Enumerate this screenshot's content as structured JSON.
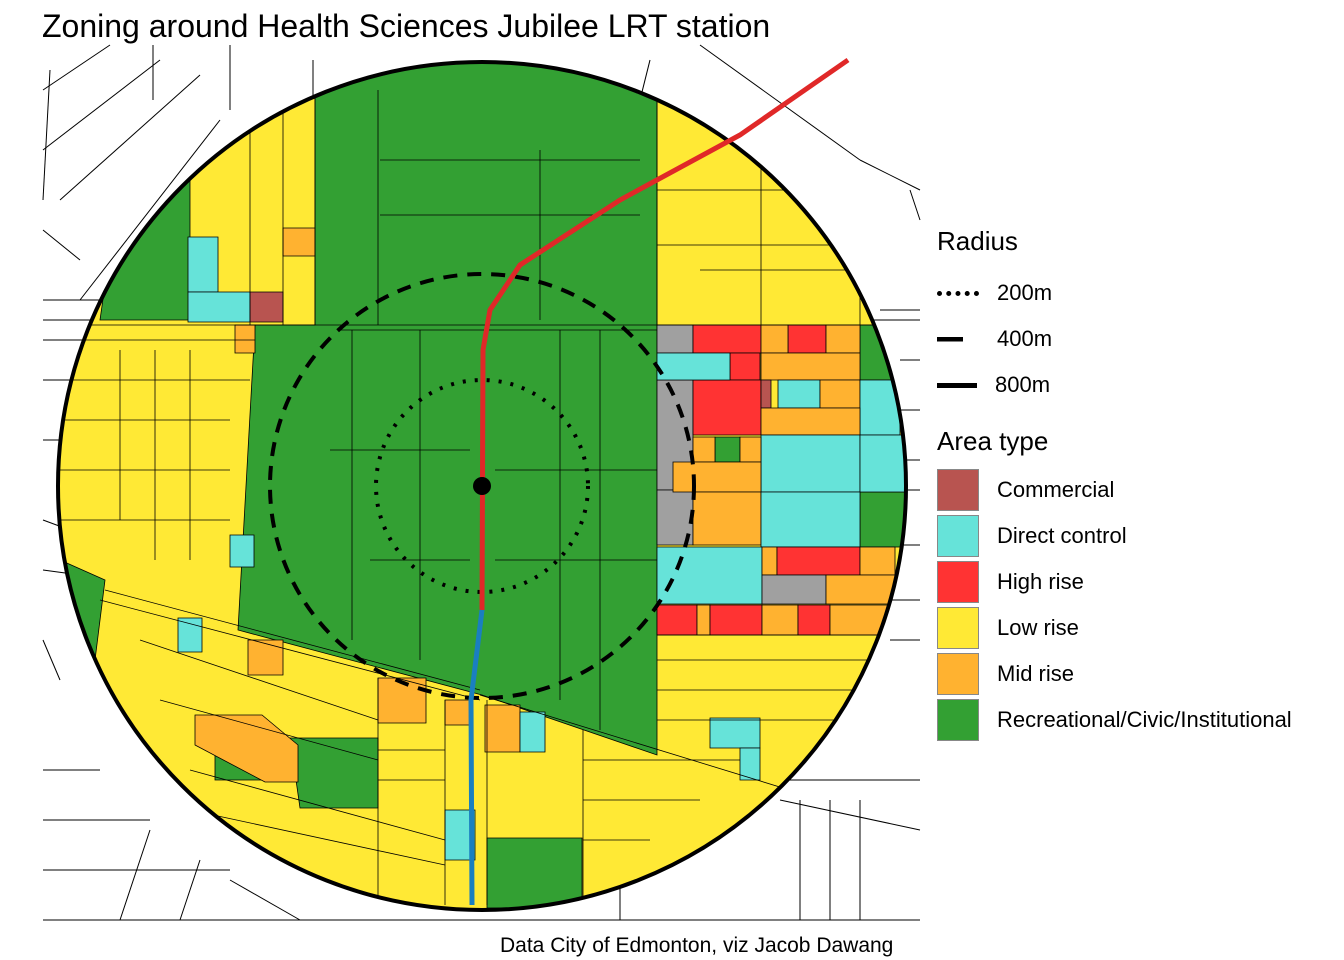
{
  "title": "Zoning around Health Sciences Jubilee LRT station",
  "caption": "Data City of Edmonton, viz Jacob Dawang",
  "legend": {
    "radius_title": "Radius",
    "radius": [
      {
        "label": "200m",
        "style": "dotted"
      },
      {
        "label": "400m",
        "style": "dashed"
      },
      {
        "label": "800m",
        "style": "solid"
      }
    ],
    "area_title": "Area type",
    "areas": [
      {
        "label": "Commercial",
        "color": "#b85450"
      },
      {
        "label": "Direct control",
        "color": "#66e3d9"
      },
      {
        "label": "High rise",
        "color": "#ff3333"
      },
      {
        "label": "Low rise",
        "color": "#ffe935"
      },
      {
        "label": "Mid rise",
        "color": "#ffb230"
      },
      {
        "label": "Recreational/Civic/Institutional",
        "color": "#33a033"
      }
    ]
  },
  "colors": {
    "lrt_red": "#e02828",
    "lrt_blue": "#1a7fc0",
    "unzoned": "#a0a0a0"
  }
}
